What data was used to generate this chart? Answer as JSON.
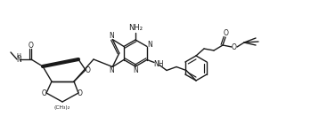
{
  "bg_color": "#ffffff",
  "line_color": "#1a1a1a",
  "lw": 1.0,
  "fs": 5.5,
  "fs_small": 4.8,
  "figsize": [
    3.58,
    1.57
  ],
  "dpi": 100,
  "xlim": [
    0,
    358
  ],
  "ylim": [
    0,
    157
  ]
}
